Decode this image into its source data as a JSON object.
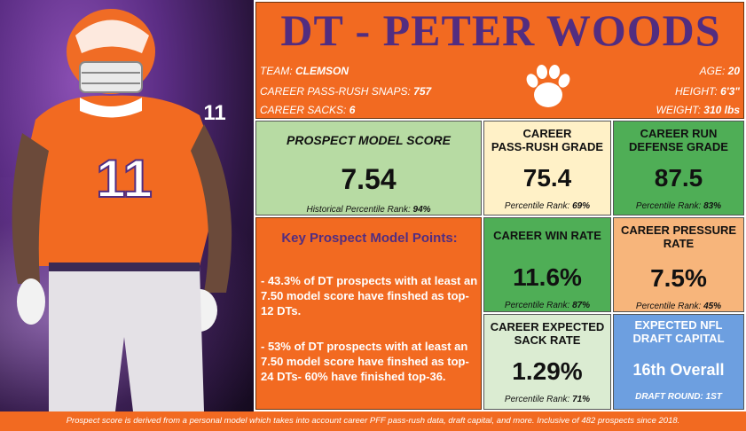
{
  "header": {
    "title": "DT - PETER WOODS",
    "team_label": "TEAM:",
    "team": "CLEMSON",
    "snaps_label": "CAREER PASS-RUSH SNAPS:",
    "snaps": "757",
    "sacks_label": "CAREER SACKS:",
    "sacks": "6",
    "age_label": "AGE:",
    "age": "20",
    "height_label": "HEIGHT:",
    "height": "6'3\"",
    "weight_label": "WEIGHT:",
    "weight": "310 lbs"
  },
  "model_score": {
    "title": "PROSPECT MODEL SCORE",
    "value": "7.54",
    "sub_label": "Historical Percentile Rank:",
    "sub_value": "94%"
  },
  "pass_rush": {
    "title1": "CAREER",
    "title2": "PASS-RUSH GRADE",
    "value": "75.4",
    "sub_label": "Percentile Rank:",
    "sub_value": "69%"
  },
  "run_def": {
    "title1": "CAREER RUN",
    "title2": "DEFENSE GRADE",
    "value": "87.5",
    "sub_label": "Percentile Rank:",
    "sub_value": "83%"
  },
  "win_rate": {
    "title": "CAREER WIN RATE",
    "value": "11.6%",
    "sub_label": "Percentile Rank:",
    "sub_value": "87%"
  },
  "pressure": {
    "title1": "CAREER PRESSURE",
    "title2": "RATE",
    "value": "7.5%",
    "sub_label": "Percentile Rank:",
    "sub_value": "45%"
  },
  "sack_rate": {
    "title1": "CAREER EXPECTED",
    "title2": "SACK RATE",
    "value": "1.29%",
    "sub_label": "Percentile Rank:",
    "sub_value": "71%"
  },
  "draft": {
    "title1": "EXPECTED NFL",
    "title2": "DRAFT CAPITAL",
    "value": "16th Overall",
    "sub_label": "DRAFT ROUND:",
    "sub_value": "1ST"
  },
  "points": {
    "heading": "Key Prospect Model Points:",
    "p1": "- 43.3% of DT prospects with at least an 7.50 model score have finshed as top-12 DTs.",
    "p2": "- 53% of DT prospects with at least an 7.50 model score have finshed as top-24 DTs- 60% have finished top-36."
  },
  "photo": {
    "jersey_number": "11"
  },
  "footer": "Prospect score is derived from a personal model which takes into account career PFF pass-rush data, draft capital, and more. Inclusive of 482 prospects since 2018.",
  "colors": {
    "orange": "#f26a21",
    "purple": "#522d80",
    "green_light": "#b7dba3",
    "cream": "#fff1c7",
    "green": "#4fae56",
    "peach": "#f7b57b",
    "mint": "#dbecd2",
    "blue": "#6d9fe0"
  }
}
